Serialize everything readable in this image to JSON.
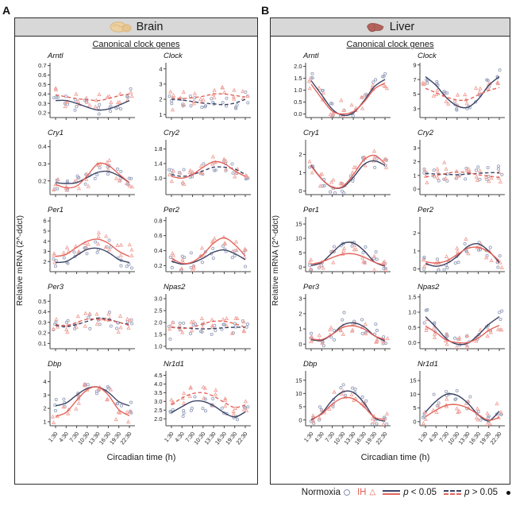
{
  "figure": {
    "panel_a_letter": "A",
    "panel_b_letter": "B"
  },
  "legend": {
    "normoxia_label": "Normoxia",
    "ih_label": "IH",
    "p_symbol": "p",
    "sig_suffix": " < 0.05",
    "nonsig_suffix": " > 0.05"
  },
  "colors": {
    "normoxia_line": "#3b4365",
    "ih_line": "#e4635a",
    "normoxia_point": "#98a2bc",
    "ih_point": "#f0a29b",
    "header_bg": "#d8d8d8",
    "axis": "#444444",
    "brain_icon": "#ecd0a0",
    "liver_icon": "#b2625a"
  },
  "chart_data": {
    "type": "line",
    "x_categories": [
      "1:30",
      "4:30",
      "7:30",
      "10:30",
      "13:30",
      "16:30",
      "19:30",
      "22:30"
    ],
    "xlabel": "Circadian time (h)",
    "ylabel": "Relative mRNA (2^-ddct)",
    "legend_note": "solid line p < 0.05, dashed line p > 0.05; circles Normoxia, triangles IH",
    "panels": [
      {
        "letter": "A",
        "title": "Brain",
        "icon": "brain-icon",
        "subtitle": "Canonical clock genes",
        "subplots": [
          {
            "gene": "Arntl",
            "ymin": 0.15,
            "ymax": 0.73,
            "yticks": [
              "0.2",
              "0.3",
              "0.4",
              "0.5",
              "0.6",
              "0.7"
            ],
            "normoxia": {
              "significant": true,
              "values": [
                0.33,
                0.33,
                0.3,
                0.26,
                0.23,
                0.24,
                0.28,
                0.33
              ]
            },
            "ih": {
              "significant": false,
              "values": [
                0.39,
                0.37,
                0.35,
                0.34,
                0.33,
                0.35,
                0.38,
                0.4
              ]
            }
          },
          {
            "gene": "Clock",
            "ymin": 0.8,
            "ymax": 4.4,
            "yticks": [
              "1",
              "2",
              "3",
              "4"
            ],
            "normoxia": {
              "significant": false,
              "values": [
                2.0,
                1.95,
                1.85,
                1.75,
                1.7,
                1.65,
                1.75,
                2.0
              ]
            },
            "ih": {
              "significant": false,
              "values": [
                2.1,
                2.05,
                2.1,
                2.2,
                2.35,
                2.35,
                2.25,
                2.15
              ]
            }
          },
          {
            "gene": "Cry1",
            "ymin": 0.12,
            "ymax": 0.44,
            "yticks": [
              "0.2",
              "0.3",
              "0.4"
            ],
            "normoxia": {
              "significant": true,
              "values": [
                0.19,
                0.185,
                0.19,
                0.22,
                0.25,
                0.255,
                0.23,
                0.19
              ]
            },
            "ih": {
              "significant": true,
              "values": [
                0.18,
                0.16,
                0.17,
                0.23,
                0.3,
                0.29,
                0.24,
                0.19
              ]
            }
          },
          {
            "gene": "Cry2",
            "ymin": 0.55,
            "ymax": 2.05,
            "yticks": [
              "1.0",
              "1.4",
              "1.8"
            ],
            "normoxia": {
              "significant": false,
              "values": [
                1.1,
                1.05,
                1.1,
                1.2,
                1.3,
                1.3,
                1.25,
                1.1
              ]
            },
            "ih": {
              "significant": true,
              "values": [
                1.05,
                1.0,
                1.1,
                1.3,
                1.45,
                1.4,
                1.2,
                1.05
              ]
            }
          },
          {
            "gene": "Per1",
            "ymin": 1.0,
            "ymax": 6.4,
            "yticks": [
              "2",
              "3",
              "4",
              "5",
              "6"
            ],
            "normoxia": {
              "significant": true,
              "values": [
                1.9,
                2.0,
                2.6,
                3.2,
                3.3,
                2.9,
                2.2,
                1.9
              ]
            },
            "ih": {
              "significant": true,
              "values": [
                2.5,
                2.7,
                3.4,
                4.0,
                4.2,
                3.8,
                3.0,
                2.5
              ]
            }
          },
          {
            "gene": "Per2",
            "ymin": 0.12,
            "ymax": 0.85,
            "yticks": [
              "0.2",
              "0.4",
              "0.6",
              "0.8"
            ],
            "normoxia": {
              "significant": true,
              "values": [
                0.26,
                0.22,
                0.24,
                0.3,
                0.38,
                0.41,
                0.36,
                0.28
              ]
            },
            "ih": {
              "significant": true,
              "values": [
                0.3,
                0.23,
                0.25,
                0.35,
                0.5,
                0.57,
                0.48,
                0.33
              ]
            }
          },
          {
            "gene": "Per3",
            "ymin": 0.05,
            "ymax": 0.57,
            "yticks": [
              "0.1",
              "0.2",
              "0.3",
              "0.4",
              "0.5"
            ],
            "normoxia": {
              "significant": false,
              "values": [
                0.27,
                0.26,
                0.28,
                0.31,
                0.34,
                0.33,
                0.3,
                0.28
              ]
            },
            "ih": {
              "significant": false,
              "values": [
                0.28,
                0.27,
                0.3,
                0.33,
                0.33,
                0.32,
                0.3,
                0.27
              ]
            }
          },
          {
            "gene": "Npas2",
            "ymin": 0.9,
            "ymax": 3.2,
            "yticks": [
              "1.0",
              "1.5",
              "2.0",
              "2.5",
              "3.0"
            ],
            "normoxia": {
              "significant": false,
              "values": [
                1.8,
                1.78,
                1.75,
                1.73,
                1.75,
                1.78,
                1.8,
                1.8
              ]
            },
            "ih": {
              "significant": false,
              "values": [
                1.8,
                1.75,
                1.8,
                1.95,
                2.05,
                2.05,
                1.95,
                1.8
              ]
            }
          },
          {
            "gene": "Dbp",
            "ymin": 0.7,
            "ymax": 4.8,
            "yticks": [
              "1",
              "2",
              "3",
              "4"
            ],
            "normoxia": {
              "significant": true,
              "values": [
                2.2,
                2.4,
                3.0,
                3.5,
                3.6,
                3.2,
                2.5,
                2.2
              ]
            },
            "ih": {
              "significant": true,
              "values": [
                1.4,
                1.7,
                2.6,
                3.4,
                3.6,
                3.0,
                1.9,
                1.45
              ]
            }
          },
          {
            "gene": "Nr1d1",
            "ymin": 1.6,
            "ymax": 4.75,
            "yticks": [
              "2.0",
              "2.5",
              "3.0",
              "3.5",
              "4.0",
              "4.5"
            ],
            "normoxia": {
              "significant": true,
              "values": [
                2.35,
                2.7,
                3.0,
                3.0,
                2.75,
                2.35,
                2.1,
                2.4
              ]
            },
            "ih": {
              "significant": false,
              "values": [
                2.8,
                3.2,
                3.45,
                3.5,
                3.3,
                2.95,
                2.65,
                2.8
              ]
            }
          }
        ]
      },
      {
        "letter": "B",
        "title": "Liver",
        "icon": "liver-icon",
        "subtitle": "Canonical clock genes",
        "subplots": [
          {
            "gene": "Arntl",
            "ymin": -0.15,
            "ymax": 2.15,
            "yticks": [
              "0.0",
              "0.5",
              "1.0",
              "1.5",
              "2.0"
            ],
            "normoxia": {
              "significant": true,
              "values": [
                1.4,
                0.8,
                0.2,
                -0.05,
                0.05,
                0.55,
                1.15,
                1.45
              ]
            },
            "ih": {
              "significant": true,
              "values": [
                1.25,
                0.65,
                0.12,
                0.0,
                0.1,
                0.5,
                1.05,
                1.3
              ]
            }
          },
          {
            "gene": "Clock",
            "ymin": 1.8,
            "ymax": 9.3,
            "yticks": [
              "3",
              "5",
              "7",
              "9"
            ],
            "normoxia": {
              "significant": true,
              "values": [
                7.4,
                6.2,
                4.5,
                3.4,
                3.2,
                4.3,
                6.2,
                7.4
              ]
            },
            "ih": {
              "significant": false,
              "values": [
                5.8,
                5.2,
                4.6,
                4.2,
                4.25,
                4.9,
                5.5,
                5.9
              ]
            }
          },
          {
            "gene": "Cry1",
            "ymin": -0.2,
            "ymax": 2.8,
            "yticks": [
              "0",
              "1",
              "2"
            ],
            "normoxia": {
              "significant": true,
              "values": [
                1.4,
                0.65,
                0.2,
                0.2,
                0.75,
                1.45,
                1.65,
                1.4
              ]
            },
            "ih": {
              "significant": true,
              "values": [
                1.35,
                0.65,
                0.22,
                0.25,
                0.9,
                1.7,
                1.95,
                1.5
              ]
            }
          },
          {
            "gene": "Cry2",
            "ymin": -0.4,
            "ymax": 3.6,
            "yticks": [
              "0",
              "1",
              "2",
              "3"
            ],
            "normoxia": {
              "significant": false,
              "values": [
                1.15,
                1.1,
                1.08,
                1.05,
                1.1,
                1.15,
                1.2,
                1.2
              ]
            },
            "ih": {
              "significant": false,
              "values": [
                0.9,
                1.0,
                1.15,
                1.25,
                1.2,
                1.05,
                0.95,
                0.85
              ]
            }
          },
          {
            "gene": "Per1",
            "ymin": -1.6,
            "ymax": 17.5,
            "yticks": [
              "0",
              "5",
              "10",
              "15"
            ],
            "normoxia": {
              "significant": true,
              "values": [
                0.5,
                1.6,
                5.0,
                8.2,
                8.4,
                5.8,
                1.8,
                0.3
              ]
            },
            "ih": {
              "significant": true,
              "values": [
                1.0,
                1.8,
                3.3,
                4.5,
                4.6,
                3.5,
                1.7,
                0.6
              ]
            }
          },
          {
            "gene": "Per2",
            "ymin": -0.15,
            "ymax": 2.9,
            "yticks": [
              "0",
              "1",
              "2"
            ],
            "normoxia": {
              "significant": true,
              "values": [
                0.3,
                0.15,
                0.3,
                0.7,
                1.25,
                1.4,
                1.0,
                0.35
              ]
            },
            "ih": {
              "significant": true,
              "values": [
                0.4,
                0.33,
                0.45,
                0.8,
                1.15,
                1.2,
                0.95,
                0.45
              ]
            }
          },
          {
            "gene": "Per3",
            "ymin": -0.3,
            "ymax": 3.3,
            "yticks": [
              "0",
              "1",
              "2",
              "3"
            ],
            "normoxia": {
              "significant": true,
              "values": [
                0.3,
                0.25,
                0.65,
                1.25,
                1.4,
                1.15,
                0.55,
                0.2
              ]
            },
            "ih": {
              "significant": true,
              "values": [
                0.35,
                0.3,
                0.65,
                1.1,
                1.2,
                1.0,
                0.55,
                0.3
              ]
            }
          },
          {
            "gene": "Npas2",
            "ymin": -0.2,
            "ymax": 1.6,
            "yticks": [
              "0.0",
              "0.5",
              "1.0",
              "1.5"
            ],
            "normoxia": {
              "significant": true,
              "values": [
                0.85,
                0.5,
                0.12,
                -0.05,
                -0.02,
                0.25,
                0.6,
                0.85
              ]
            },
            "ih": {
              "significant": true,
              "values": [
                0.55,
                0.33,
                0.08,
                0.0,
                0.0,
                0.15,
                0.4,
                0.57
              ]
            }
          },
          {
            "gene": "Dbp",
            "ymin": -2.2,
            "ymax": 18.5,
            "yticks": [
              "0",
              "5",
              "10",
              "15"
            ],
            "normoxia": {
              "significant": true,
              "values": [
                0.0,
                2.5,
                7.5,
                10.6,
                10.4,
                6.5,
                0.8,
                -0.5
              ]
            },
            "ih": {
              "significant": true,
              "values": [
                0.3,
                2.2,
                6.0,
                8.3,
                8.0,
                5.0,
                1.0,
                0.3
              ]
            }
          },
          {
            "gene": "Nr1d1",
            "ymin": -1.5,
            "ymax": 18.5,
            "yticks": [
              "0",
              "5",
              "10",
              "15"
            ],
            "normoxia": {
              "significant": true,
              "values": [
                3.5,
                7.5,
                10.0,
                9.6,
                6.8,
                2.5,
                0.3,
                3.8
              ]
            },
            "ih": {
              "significant": true,
              "values": [
                1.8,
                4.2,
                6.0,
                6.2,
                5.0,
                2.6,
                0.5,
                1.6
              ]
            }
          }
        ]
      }
    ]
  }
}
